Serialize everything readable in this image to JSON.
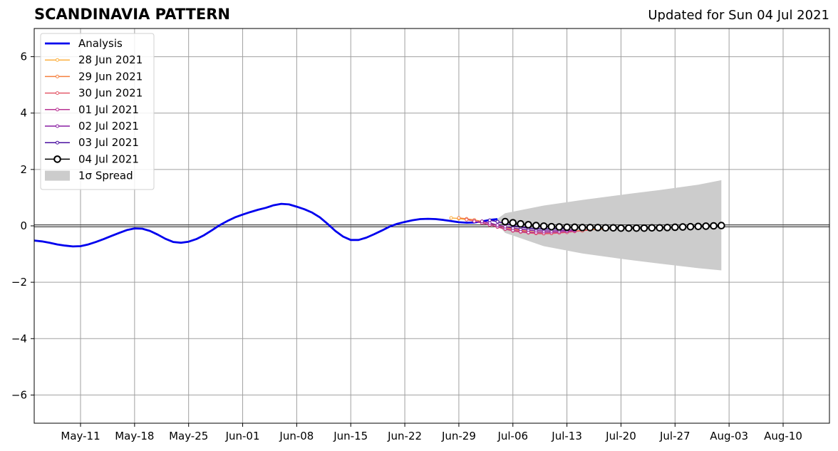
{
  "title": "SCANDINAVIA PATTERN",
  "subtitle": "Updated for Sun 04 Jul 2021",
  "chart_data": {
    "type": "line",
    "title": "SCANDINAVIA PATTERN",
    "subtitle": "Updated for Sun 04 Jul 2021",
    "xlabel": "",
    "ylabel": "",
    "xlim": [
      "2021-05-05",
      "2021-08-16"
    ],
    "ylim": [
      -7,
      7
    ],
    "x_ticks": [
      {
        "date": "2021-05-11",
        "label": "May-11"
      },
      {
        "date": "2021-05-18",
        "label": "May-18"
      },
      {
        "date": "2021-05-25",
        "label": "May-25"
      },
      {
        "date": "2021-06-01",
        "label": "Jun-01"
      },
      {
        "date": "2021-06-08",
        "label": "Jun-08"
      },
      {
        "date": "2021-06-15",
        "label": "Jun-15"
      },
      {
        "date": "2021-06-22",
        "label": "Jun-22"
      },
      {
        "date": "2021-06-29",
        "label": "Jun-29"
      },
      {
        "date": "2021-07-06",
        "label": "Jul-06"
      },
      {
        "date": "2021-07-13",
        "label": "Jul-13"
      },
      {
        "date": "2021-07-20",
        "label": "Jul-20"
      },
      {
        "date": "2021-07-27",
        "label": "Jul-27"
      },
      {
        "date": "2021-08-03",
        "label": "Aug-03"
      },
      {
        "date": "2021-08-10",
        "label": "Aug-10"
      }
    ],
    "y_ticks": [
      {
        "value": -6,
        "label": "−6"
      },
      {
        "value": -4,
        "label": "−4"
      },
      {
        "value": -2,
        "label": "−2"
      },
      {
        "value": 0,
        "label": "0"
      },
      {
        "value": 2,
        "label": "2"
      },
      {
        "value": 4,
        "label": "4"
      },
      {
        "value": 6,
        "label": "6"
      }
    ],
    "grid": true,
    "zero_line": true,
    "legend_position": "top-left",
    "series": [
      {
        "name": "Analysis",
        "color": "#0000ee",
        "style": "thick-line",
        "x": [
          "2021-05-05",
          "2021-05-06",
          "2021-05-07",
          "2021-05-08",
          "2021-05-09",
          "2021-05-10",
          "2021-05-11",
          "2021-05-12",
          "2021-05-13",
          "2021-05-14",
          "2021-05-15",
          "2021-05-16",
          "2021-05-17",
          "2021-05-18",
          "2021-05-19",
          "2021-05-20",
          "2021-05-21",
          "2021-05-22",
          "2021-05-23",
          "2021-05-24",
          "2021-05-25",
          "2021-05-26",
          "2021-05-27",
          "2021-05-28",
          "2021-05-29",
          "2021-05-30",
          "2021-05-31",
          "2021-06-01",
          "2021-06-02",
          "2021-06-03",
          "2021-06-04",
          "2021-06-05",
          "2021-06-06",
          "2021-06-07",
          "2021-06-08",
          "2021-06-09",
          "2021-06-10",
          "2021-06-11",
          "2021-06-12",
          "2021-06-13",
          "2021-06-14",
          "2021-06-15",
          "2021-06-16",
          "2021-06-17",
          "2021-06-18",
          "2021-06-19",
          "2021-06-20",
          "2021-06-21",
          "2021-06-22",
          "2021-06-23",
          "2021-06-24",
          "2021-06-25",
          "2021-06-26",
          "2021-06-27",
          "2021-06-28",
          "2021-06-29",
          "2021-06-30",
          "2021-07-01",
          "2021-07-02",
          "2021-07-03",
          "2021-07-04"
        ],
        "y": [
          -0.52,
          -0.55,
          -0.6,
          -0.66,
          -0.7,
          -0.73,
          -0.72,
          -0.66,
          -0.57,
          -0.47,
          -0.36,
          -0.25,
          -0.15,
          -0.09,
          -0.1,
          -0.18,
          -0.31,
          -0.46,
          -0.57,
          -0.6,
          -0.56,
          -0.47,
          -0.33,
          -0.16,
          0.02,
          0.17,
          0.3,
          0.4,
          0.49,
          0.57,
          0.64,
          0.73,
          0.78,
          0.76,
          0.68,
          0.59,
          0.47,
          0.3,
          0.07,
          -0.18,
          -0.38,
          -0.5,
          -0.5,
          -0.42,
          -0.3,
          -0.17,
          -0.03,
          0.07,
          0.14,
          0.2,
          0.24,
          0.25,
          0.24,
          0.21,
          0.17,
          0.13,
          0.11,
          0.12,
          0.16,
          0.21,
          0.24
        ]
      },
      {
        "name": "28 Jun 2021",
        "color": "#fcb040",
        "style": "small-dot",
        "x": [
          "2021-06-28",
          "2021-06-29",
          "2021-06-30",
          "2021-07-01",
          "2021-07-02",
          "2021-07-03",
          "2021-07-04",
          "2021-07-05",
          "2021-07-06",
          "2021-07-07",
          "2021-07-08",
          "2021-07-09",
          "2021-07-10",
          "2021-07-11",
          "2021-07-12",
          "2021-07-13",
          "2021-07-14",
          "2021-07-15",
          "2021-07-16",
          "2021-07-17",
          "2021-07-18",
          "2021-07-19"
        ],
        "y": [
          0.28,
          0.26,
          0.22,
          0.17,
          0.1,
          0.03,
          -0.04,
          -0.1,
          -0.15,
          -0.19,
          -0.22,
          -0.24,
          -0.25,
          -0.25,
          -0.24,
          -0.22,
          -0.19,
          -0.16,
          -0.13,
          -0.1,
          -0.08,
          -0.06
        ]
      },
      {
        "name": "29 Jun 2021",
        "color": "#f5803e",
        "style": "small-dot",
        "x": [
          "2021-06-29",
          "2021-06-30",
          "2021-07-01",
          "2021-07-02",
          "2021-07-03",
          "2021-07-04",
          "2021-07-05",
          "2021-07-06",
          "2021-07-07",
          "2021-07-08",
          "2021-07-09",
          "2021-07-10",
          "2021-07-11",
          "2021-07-12",
          "2021-07-13",
          "2021-07-14",
          "2021-07-15",
          "2021-07-16",
          "2021-07-17",
          "2021-07-18"
        ],
        "y": [
          0.28,
          0.25,
          0.21,
          0.16,
          0.09,
          0.02,
          -0.05,
          -0.11,
          -0.16,
          -0.2,
          -0.23,
          -0.24,
          -0.24,
          -0.23,
          -0.21,
          -0.19,
          -0.17,
          -0.14,
          -0.12,
          -0.1
        ]
      },
      {
        "name": "30 Jun 2021",
        "color": "#e45a6a",
        "style": "small-dot",
        "x": [
          "2021-06-30",
          "2021-07-01",
          "2021-07-02",
          "2021-07-03",
          "2021-07-04",
          "2021-07-05",
          "2021-07-06",
          "2021-07-07",
          "2021-07-08",
          "2021-07-09",
          "2021-07-10",
          "2021-07-11",
          "2021-07-12",
          "2021-07-13",
          "2021-07-14",
          "2021-07-15",
          "2021-07-16"
        ],
        "y": [
          0.22,
          0.17,
          0.1,
          0.03,
          -0.04,
          -0.12,
          -0.18,
          -0.22,
          -0.25,
          -0.27,
          -0.28,
          -0.27,
          -0.25,
          -0.23,
          -0.2,
          -0.17,
          -0.14
        ]
      },
      {
        "name": "01 Jul 2021",
        "color": "#b83393",
        "style": "small-dot",
        "x": [
          "2021-07-01",
          "2021-07-02",
          "2021-07-03",
          "2021-07-04",
          "2021-07-05",
          "2021-07-06",
          "2021-07-07",
          "2021-07-08",
          "2021-07-09",
          "2021-07-10",
          "2021-07-11",
          "2021-07-12",
          "2021-07-13",
          "2021-07-14"
        ],
        "y": [
          0.16,
          0.11,
          0.04,
          -0.03,
          -0.1,
          -0.16,
          -0.2,
          -0.23,
          -0.24,
          -0.24,
          -0.23,
          -0.22,
          -0.2,
          -0.18
        ]
      },
      {
        "name": "02 Jul 2021",
        "color": "#8a1fa3",
        "style": "small-dot",
        "x": [
          "2021-07-02",
          "2021-07-03",
          "2021-07-04",
          "2021-07-05",
          "2021-07-06",
          "2021-07-07",
          "2021-07-08",
          "2021-07-09",
          "2021-07-10",
          "2021-07-11",
          "2021-07-12",
          "2021-07-13",
          "2021-07-14"
        ],
        "y": [
          0.16,
          0.1,
          0.03,
          -0.03,
          -0.08,
          -0.12,
          -0.15,
          -0.17,
          -0.18,
          -0.18,
          -0.17,
          -0.16,
          -0.15
        ]
      },
      {
        "name": "03 Jul 2021",
        "color": "#4a10a0",
        "style": "small-dot",
        "x": [
          "2021-07-03",
          "2021-07-04",
          "2021-07-05",
          "2021-07-06",
          "2021-07-07",
          "2021-07-08",
          "2021-07-09",
          "2021-07-10",
          "2021-07-11",
          "2021-07-12",
          "2021-07-13"
        ],
        "y": [
          0.2,
          0.15,
          0.08,
          0.01,
          -0.04,
          -0.08,
          -0.1,
          -0.11,
          -0.11,
          -0.1,
          -0.09
        ]
      },
      {
        "name": "04 Jul 2021",
        "color": "#000000",
        "style": "open-circle",
        "x": [
          "2021-07-05",
          "2021-07-06",
          "2021-07-07",
          "2021-07-08",
          "2021-07-09",
          "2021-07-10",
          "2021-07-11",
          "2021-07-12",
          "2021-07-13",
          "2021-07-14",
          "2021-07-15",
          "2021-07-16",
          "2021-07-17",
          "2021-07-18",
          "2021-07-19",
          "2021-07-20",
          "2021-07-21",
          "2021-07-22",
          "2021-07-23",
          "2021-07-24",
          "2021-07-25",
          "2021-07-26",
          "2021-07-27",
          "2021-07-28",
          "2021-07-29",
          "2021-07-30",
          "2021-07-31",
          "2021-08-01",
          "2021-08-02"
        ],
        "y": [
          0.15,
          0.11,
          0.07,
          0.04,
          0.01,
          -0.01,
          -0.03,
          -0.04,
          -0.05,
          -0.05,
          -0.06,
          -0.06,
          -0.06,
          -0.07,
          -0.07,
          -0.08,
          -0.08,
          -0.08,
          -0.08,
          -0.07,
          -0.07,
          -0.06,
          -0.05,
          -0.04,
          -0.03,
          -0.02,
          -0.01,
          0.0,
          0.01
        ]
      }
    ],
    "spread": {
      "name": "1σ Spread",
      "color": "#cccccc",
      "x": [
        "2021-07-04",
        "2021-07-05",
        "2021-07-10",
        "2021-07-15",
        "2021-07-20",
        "2021-07-25",
        "2021-07-30",
        "2021-08-02"
      ],
      "upper": [
        0.25,
        0.45,
        0.72,
        0.92,
        1.1,
        1.27,
        1.46,
        1.62
      ],
      "lower": [
        0.05,
        -0.25,
        -0.72,
        -0.98,
        -1.17,
        -1.34,
        -1.5,
        -1.58
      ]
    },
    "legend": [
      {
        "label": "Analysis",
        "color": "#0000ee",
        "kind": "thick-line"
      },
      {
        "label": "28 Jun 2021",
        "color": "#fcb040",
        "kind": "small-dot"
      },
      {
        "label": "29 Jun 2021",
        "color": "#f5803e",
        "kind": "small-dot"
      },
      {
        "label": "30 Jun 2021",
        "color": "#e45a6a",
        "kind": "small-dot"
      },
      {
        "label": "01 Jul 2021",
        "color": "#b83393",
        "kind": "small-dot"
      },
      {
        "label": "02 Jul 2021",
        "color": "#8a1fa3",
        "kind": "small-dot"
      },
      {
        "label": "03 Jul 2021",
        "color": "#4a10a0",
        "kind": "small-dot"
      },
      {
        "label": "04 Jul 2021",
        "color": "#000000",
        "kind": "open-circle"
      },
      {
        "label": "1σ Spread",
        "color": "#cccccc",
        "kind": "patch"
      }
    ]
  }
}
